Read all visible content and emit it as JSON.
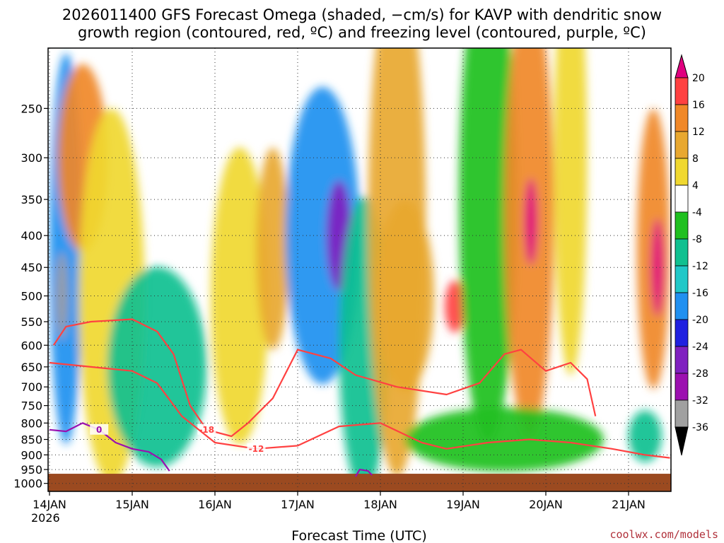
{
  "title_line1": "2026011400 GFS Forecast Omega (shaded, −cm/s) for KAVP with dendritic snow",
  "title_line2": "growth region (contoured, red, ºC) and freezing level (contoured, purple, ºC)",
  "credit": "coolwx.com/models",
  "credit_color": "#b0303a",
  "chart_data": {
    "type": "heatmap",
    "xlabel": "Forecast Time (UTC)",
    "x_ticks": [
      "14JAN",
      "15JAN",
      "16JAN",
      "17JAN",
      "18JAN",
      "19JAN",
      "20JAN",
      "21JAN"
    ],
    "x_year": "2026",
    "x_range_days": [
      0,
      7.5
    ],
    "y_axis": "pressure_hPa_inverted",
    "y_ticks": [
      250,
      300,
      350,
      400,
      450,
      500,
      550,
      600,
      650,
      700,
      750,
      800,
      850,
      900,
      950,
      1000
    ],
    "ylim": [
      1000,
      200
    ],
    "grid": "dotted",
    "colorbar": {
      "ticks": [
        20,
        16,
        12,
        8,
        4,
        -4,
        -8,
        -12,
        -16,
        -20,
        -24,
        -28,
        -32,
        -36
      ],
      "colors": [
        "#e0007f",
        "#ff4141",
        "#f08828",
        "#e8a830",
        "#f0d830",
        "#ffffff",
        "#20c020",
        "#10c090",
        "#20c8c8",
        "#2090f0",
        "#2020e0",
        "#8020c0",
        "#9c10b0",
        "#a0a0a0",
        "#000000"
      ],
      "extend": "both"
    },
    "ground_color": "#9b4a20",
    "ground_level_hPa": 965,
    "shaded_features": [
      {
        "cx": 0.2,
        "p": 420,
        "rx": 0.2,
        "rp": 260,
        "v": -18
      },
      {
        "cx": 0.15,
        "p": 500,
        "rx": 0.07,
        "rp": 80,
        "v": -34
      },
      {
        "cx": 0.4,
        "p": 300,
        "rx": 0.3,
        "rp": 100,
        "v": 12
      },
      {
        "cx": 0.75,
        "p": 500,
        "rx": 0.4,
        "rp": 300,
        "v": 6
      },
      {
        "cx": 1.3,
        "p": 650,
        "rx": 0.6,
        "rp": 230,
        "v": -9
      },
      {
        "cx": 2.3,
        "p": 500,
        "rx": 0.35,
        "rp": 250,
        "v": 6
      },
      {
        "cx": 2.7,
        "p": 420,
        "rx": 0.2,
        "rp": 150,
        "v": 9
      },
      {
        "cx": 3.3,
        "p": 400,
        "rx": 0.45,
        "rp": 200,
        "v": -20
      },
      {
        "cx": 3.5,
        "p": 400,
        "rx": 0.15,
        "rp": 80,
        "v": -26
      },
      {
        "cx": 3.8,
        "p": 600,
        "rx": 0.3,
        "rp": 300,
        "v": -10
      },
      {
        "cx": 4.2,
        "p": 380,
        "rx": 0.35,
        "rp": 280,
        "v": 8
      },
      {
        "cx": 4.3,
        "p": 500,
        "rx": 0.35,
        "rp": 170,
        "v": 8
      },
      {
        "cx": 4.9,
        "p": 520,
        "rx": 0.12,
        "rp": 50,
        "v": 16
      },
      {
        "cx": 5.3,
        "p": 350,
        "rx": 0.35,
        "rp": 250,
        "v": -8
      },
      {
        "cx": 5.8,
        "p": 370,
        "rx": 0.3,
        "rp": 250,
        "v": 14
      },
      {
        "cx": 5.82,
        "p": 380,
        "rx": 0.08,
        "rp": 60,
        "v": 21
      },
      {
        "cx": 6.3,
        "p": 300,
        "rx": 0.2,
        "rp": 200,
        "v": 6
      },
      {
        "cx": 7.3,
        "p": 420,
        "rx": 0.2,
        "rp": 200,
        "v": 15
      },
      {
        "cx": 7.35,
        "p": 450,
        "rx": 0.08,
        "rp": 80,
        "v": 21
      },
      {
        "cx": 7.2,
        "p": 840,
        "rx": 0.2,
        "rp": 80,
        "v": -12
      },
      {
        "cx": 5.5,
        "p": 850,
        "rx": 1.2,
        "rp": 100,
        "v": -6
      }
    ],
    "contours": [
      {
        "name": "-18",
        "color": "#ff4141",
        "points": [
          [
            0.05,
            600
          ],
          [
            0.2,
            560
          ],
          [
            0.5,
            550
          ],
          [
            1,
            545
          ],
          [
            1.3,
            570
          ],
          [
            1.5,
            620
          ],
          [
            1.7,
            750
          ],
          [
            1.9,
            820
          ],
          [
            2.2,
            840
          ],
          [
            2.4,
            800
          ],
          [
            2.7,
            730
          ],
          [
            3,
            610
          ],
          [
            3.4,
            630
          ],
          [
            3.7,
            670
          ],
          [
            4.2,
            700
          ],
          [
            4.8,
            720
          ],
          [
            5.2,
            690
          ],
          [
            5.5,
            620
          ],
          [
            5.7,
            610
          ],
          [
            6,
            660
          ],
          [
            6.3,
            640
          ],
          [
            6.5,
            680
          ],
          [
            6.6,
            780
          ]
        ]
      },
      {
        "name": "-12",
        "color": "#ff4141",
        "points": [
          [
            0,
            640
          ],
          [
            0.5,
            650
          ],
          [
            1,
            660
          ],
          [
            1.3,
            690
          ],
          [
            1.6,
            780
          ],
          [
            2,
            860
          ],
          [
            2.5,
            880
          ],
          [
            3,
            870
          ],
          [
            3.5,
            810
          ],
          [
            4,
            800
          ],
          [
            4.5,
            860
          ],
          [
            4.8,
            880
          ],
          [
            5.3,
            860
          ],
          [
            5.8,
            850
          ],
          [
            6.3,
            860
          ],
          [
            6.8,
            880
          ],
          [
            7.2,
            900
          ],
          [
            7.5,
            910
          ]
        ]
      },
      {
        "name": "0",
        "color": "#9a10b0",
        "points": [
          [
            0,
            820
          ],
          [
            0.2,
            825
          ],
          [
            0.4,
            800
          ],
          [
            0.6,
            820
          ],
          [
            0.8,
            860
          ],
          [
            1,
            880
          ],
          [
            1.2,
            890
          ],
          [
            1.35,
            915
          ],
          [
            1.45,
            955
          ]
        ]
      },
      {
        "name": "",
        "color": "#9a10b0",
        "points": [
          [
            3.7,
            975
          ],
          [
            3.75,
            950
          ],
          [
            3.85,
            955
          ],
          [
            3.9,
            970
          ]
        ]
      }
    ]
  }
}
